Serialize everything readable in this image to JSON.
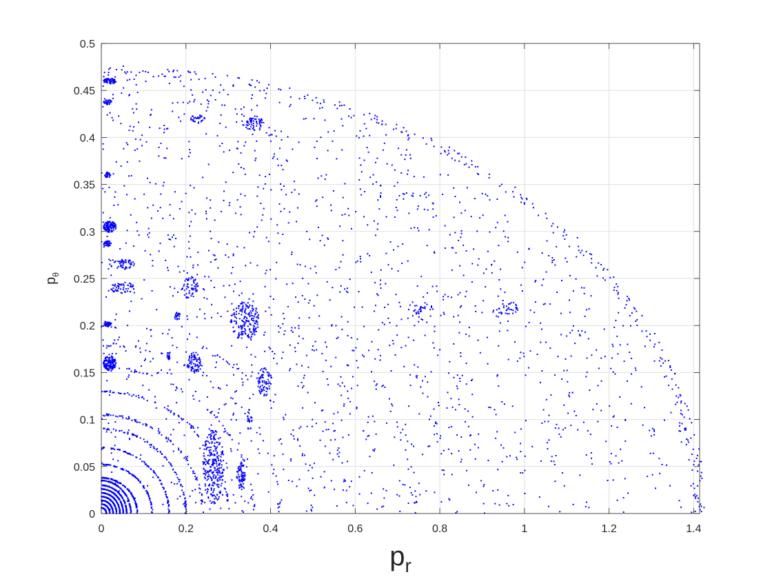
{
  "chart_data": {
    "type": "scatter",
    "title": "",
    "xlabel": "p",
    "xlabel_subscript": "r",
    "ylabel": "p",
    "ylabel_subscript": "θ",
    "xlim": [
      0,
      1.414
    ],
    "ylim": [
      0,
      0.5
    ],
    "grid": true,
    "marker_color": "#0000ff",
    "xticks": [
      0,
      0.2,
      0.4,
      0.6,
      0.8,
      1.0,
      1.2,
      1.4
    ],
    "xtick_labels": [
      "0",
      "0.2",
      "0.4",
      "0.6",
      "0.8",
      "1",
      "1.2",
      "1.4"
    ],
    "yticks": [
      0,
      0.05,
      0.1,
      0.15,
      0.2,
      0.25,
      0.3,
      0.35,
      0.4,
      0.45,
      0.5
    ],
    "ytick_labels": [
      "0",
      "0.05",
      "0.1",
      "0.15",
      "0.2",
      "0.25",
      "0.3",
      "0.35",
      "0.4",
      "0.45",
      "0.5"
    ],
    "boundary_pr_max": 1.414,
    "boundary_ptheta_max": 0.472,
    "series": [
      {
        "arcs": [
          {
            "a": 0.012,
            "b": 0.006,
            "n": 60
          },
          {
            "a": 0.02,
            "b": 0.01,
            "n": 70
          },
          {
            "a": 0.028,
            "b": 0.014,
            "n": 80
          },
          {
            "a": 0.036,
            "b": 0.018,
            "n": 90
          },
          {
            "a": 0.044,
            "b": 0.022,
            "n": 100
          },
          {
            "a": 0.052,
            "b": 0.026,
            "n": 110
          },
          {
            "a": 0.06,
            "b": 0.03,
            "n": 110
          },
          {
            "a": 0.07,
            "b": 0.035,
            "n": 110
          },
          {
            "a": 0.085,
            "b": 0.038,
            "n": 110
          },
          {
            "a": 0.12,
            "b": 0.052,
            "n": 90
          },
          {
            "a": 0.16,
            "b": 0.07,
            "n": 90
          },
          {
            "a": 0.2,
            "b": 0.09,
            "n": 90
          },
          {
            "a": 0.24,
            "b": 0.105,
            "n": 80
          },
          {
            "a": 0.3,
            "b": 0.13,
            "n": 70
          },
          {
            "a": 0.36,
            "b": 0.155,
            "n": 60
          },
          {
            "a": 0.42,
            "b": 0.18,
            "n": 50
          },
          {
            "a": 0.5,
            "b": 0.2,
            "n": 50
          },
          {
            "a": 0.58,
            "b": 0.24,
            "n": 40
          },
          {
            "a": 0.66,
            "b": 0.27,
            "n": 40
          },
          {
            "a": 0.74,
            "b": 0.3,
            "n": 40
          },
          {
            "a": 0.82,
            "b": 0.33,
            "n": 35
          },
          {
            "a": 0.9,
            "b": 0.36,
            "n": 35
          },
          {
            "a": 1.0,
            "b": 0.39,
            "n": 35
          },
          {
            "a": 1.08,
            "b": 0.41,
            "n": 35
          },
          {
            "a": 1.16,
            "b": 0.43,
            "n": 35
          },
          {
            "a": 1.24,
            "b": 0.445,
            "n": 35
          },
          {
            "a": 1.32,
            "b": 0.46,
            "n": 35
          },
          {
            "a": 1.414,
            "b": 0.472,
            "n": 260
          }
        ],
        "clusters": [
          {
            "x": 0.02,
            "y": 0.305,
            "rx": 0.015,
            "ry": 0.006,
            "n": 120
          },
          {
            "x": 0.015,
            "y": 0.287,
            "rx": 0.01,
            "ry": 0.003,
            "n": 40
          },
          {
            "x": 0.02,
            "y": 0.16,
            "rx": 0.015,
            "ry": 0.008,
            "n": 140
          },
          {
            "x": 0.015,
            "y": 0.202,
            "rx": 0.01,
            "ry": 0.003,
            "n": 40
          },
          {
            "x": 0.02,
            "y": 0.46,
            "rx": 0.015,
            "ry": 0.003,
            "n": 60
          },
          {
            "x": 0.015,
            "y": 0.438,
            "rx": 0.01,
            "ry": 0.003,
            "n": 30
          },
          {
            "x": 0.015,
            "y": 0.36,
            "rx": 0.008,
            "ry": 0.003,
            "n": 25
          },
          {
            "x": 0.34,
            "y": 0.205,
            "rx": 0.035,
            "ry": 0.02,
            "n": 180
          },
          {
            "x": 0.385,
            "y": 0.14,
            "rx": 0.018,
            "ry": 0.015,
            "n": 70
          },
          {
            "x": 0.265,
            "y": 0.05,
            "rx": 0.025,
            "ry": 0.04,
            "n": 260
          },
          {
            "x": 0.33,
            "y": 0.04,
            "rx": 0.01,
            "ry": 0.015,
            "n": 70
          },
          {
            "x": 0.21,
            "y": 0.24,
            "rx": 0.02,
            "ry": 0.012,
            "n": 60
          },
          {
            "x": 0.22,
            "y": 0.16,
            "rx": 0.015,
            "ry": 0.012,
            "n": 70
          },
          {
            "x": 0.16,
            "y": 0.168,
            "rx": 0.005,
            "ry": 0.004,
            "n": 20
          },
          {
            "x": 0.18,
            "y": 0.21,
            "rx": 0.008,
            "ry": 0.004,
            "n": 20
          },
          {
            "x": 0.36,
            "y": 0.415,
            "rx": 0.03,
            "ry": 0.008,
            "n": 60
          },
          {
            "x": 0.23,
            "y": 0.42,
            "rx": 0.02,
            "ry": 0.004,
            "n": 30
          },
          {
            "x": 0.96,
            "y": 0.218,
            "rx": 0.025,
            "ry": 0.008,
            "n": 30
          },
          {
            "x": 0.76,
            "y": 0.215,
            "rx": 0.025,
            "ry": 0.01,
            "n": 30
          },
          {
            "x": 0.05,
            "y": 0.265,
            "rx": 0.03,
            "ry": 0.006,
            "n": 50
          },
          {
            "x": 0.05,
            "y": 0.24,
            "rx": 0.03,
            "ry": 0.006,
            "n": 50
          },
          {
            "x": 0.35,
            "y": 0.1,
            "rx": 0.006,
            "ry": 0.012,
            "n": 20
          }
        ],
        "scatter_count": 1300
      }
    ]
  }
}
